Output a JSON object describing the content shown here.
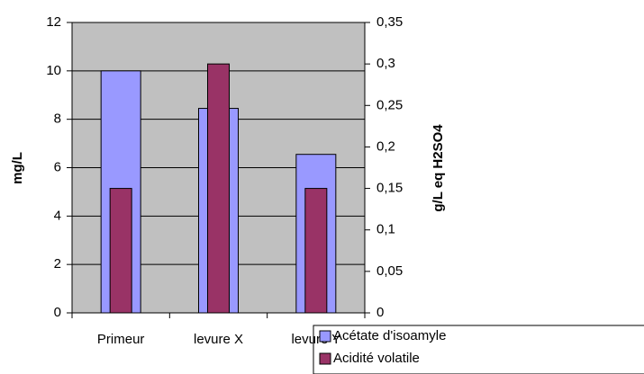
{
  "chart_data": {
    "type": "bar",
    "categories": [
      "Primeur",
      "levure X",
      "levure Y"
    ],
    "ylabel": "mg/L",
    "y2label": "g/L eq H2SO4",
    "series": [
      {
        "name": "Acétate d'isoamyle",
        "color": "#9999ff",
        "values": [
          10,
          8.45,
          6.55
        ]
      },
      {
        "name": "Acidité volatile",
        "color": "#993366",
        "values": [
          0.15,
          0.3,
          0.15
        ],
        "axis": "y2"
      }
    ],
    "ylim": [
      0,
      12
    ],
    "yticks": [
      0,
      2,
      4,
      6,
      8,
      10,
      12
    ],
    "y2lim": [
      0,
      0.35
    ],
    "y2ticks": [
      {
        "value": 0,
        "label": "0"
      },
      {
        "value": 0.05,
        "label": "0,05"
      },
      {
        "value": 0.1,
        "label": "0,1"
      },
      {
        "value": 0.15,
        "label": "0,15"
      },
      {
        "value": 0.2,
        "label": "0,2"
      },
      {
        "value": 0.25,
        "label": "0,25"
      },
      {
        "value": 0.3,
        "label": "0,3"
      },
      {
        "value": 0.35,
        "label": "0,35"
      }
    ],
    "grid": true
  }
}
